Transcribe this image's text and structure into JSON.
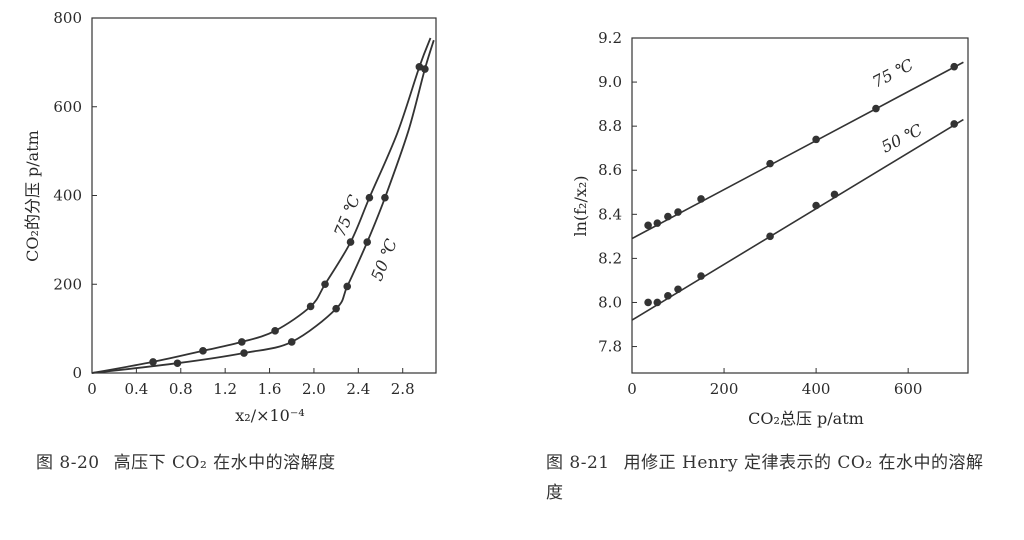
{
  "chart_data": [
    {
      "type": "scatter",
      "ylabel": "CO₂的分压 p/atm",
      "xlabel": "x₂/×10⁻⁴",
      "xlim": [
        0,
        3.1
      ],
      "ylim": [
        0,
        800
      ],
      "x_ticks": [
        "0",
        "0.4",
        "0.8",
        "1.2",
        "1.6",
        "2.0",
        "2.4",
        "2.8"
      ],
      "x_tick_values": [
        0,
        0.4,
        0.8,
        1.2,
        1.6,
        2.0,
        2.4,
        2.8
      ],
      "y_ticks": [
        "0",
        "200",
        "400",
        "600",
        "800"
      ],
      "y_tick_values": [
        0,
        200,
        400,
        600,
        800
      ],
      "series": [
        {
          "name": "75 ℃",
          "points": [
            [
              0.55,
              25
            ],
            [
              1.0,
              50
            ],
            [
              1.35,
              70
            ],
            [
              1.65,
              95
            ],
            [
              1.97,
              150
            ],
            [
              2.1,
              200
            ],
            [
              2.33,
              295
            ],
            [
              2.5,
              395
            ],
            [
              2.95,
              690
            ]
          ],
          "curve": [
            [
              0,
              0
            ],
            [
              0.55,
              25
            ],
            [
              1.0,
              50
            ],
            [
              1.35,
              70
            ],
            [
              1.65,
              95
            ],
            [
              1.97,
              150
            ],
            [
              2.1,
              200
            ],
            [
              2.33,
              295
            ],
            [
              2.5,
              395
            ],
            [
              2.75,
              540
            ],
            [
              2.95,
              690
            ],
            [
              3.05,
              755
            ]
          ]
        },
        {
          "name": "50 ℃",
          "points": [
            [
              0.77,
              22
            ],
            [
              1.37,
              45
            ],
            [
              1.8,
              70
            ],
            [
              2.2,
              145
            ],
            [
              2.3,
              195
            ],
            [
              2.48,
              295
            ],
            [
              2.64,
              395
            ],
            [
              3.0,
              685
            ]
          ],
          "curve": [
            [
              0,
              0
            ],
            [
              0.77,
              22
            ],
            [
              1.37,
              45
            ],
            [
              1.8,
              70
            ],
            [
              2.2,
              145
            ],
            [
              2.3,
              195
            ],
            [
              2.48,
              295
            ],
            [
              2.64,
              395
            ],
            [
              2.85,
              545
            ],
            [
              3.0,
              685
            ],
            [
              3.08,
              750
            ]
          ]
        }
      ]
    },
    {
      "type": "scatter",
      "ylabel": "ln(f₂/x₂)",
      "xlabel": "CO₂总压 p/atm",
      "xlim": [
        0,
        730
      ],
      "ylim": [
        7.68,
        9.2
      ],
      "x_ticks": [
        "0",
        "200",
        "400",
        "600"
      ],
      "x_tick_values": [
        0,
        200,
        400,
        600
      ],
      "y_ticks": [
        "7.8",
        "8.0",
        "8.2",
        "8.4",
        "8.6",
        "8.8",
        "9.0",
        "9.2"
      ],
      "y_tick_values": [
        7.8,
        8.0,
        8.2,
        8.4,
        8.6,
        8.8,
        9.0,
        9.2
      ],
      "series": [
        {
          "name": "75 ℃",
          "points": [
            [
              35,
              8.35
            ],
            [
              55,
              8.36
            ],
            [
              78,
              8.39
            ],
            [
              100,
              8.41
            ],
            [
              150,
              8.47
            ],
            [
              300,
              8.63
            ],
            [
              400,
              8.74
            ],
            [
              530,
              8.88
            ],
            [
              700,
              9.07
            ]
          ],
          "line": [
            [
              0,
              8.29
            ],
            [
              720,
              9.09
            ]
          ]
        },
        {
          "name": "50 ℃",
          "points": [
            [
              35,
              8.0
            ],
            [
              55,
              8.0
            ],
            [
              78,
              8.03
            ],
            [
              100,
              8.06
            ],
            [
              150,
              8.12
            ],
            [
              300,
              8.3
            ],
            [
              400,
              8.44
            ],
            [
              440,
              8.49
            ],
            [
              700,
              8.81
            ]
          ],
          "line": [
            [
              0,
              7.92
            ],
            [
              720,
              8.83
            ]
          ]
        }
      ]
    }
  ],
  "captions": {
    "left_number": "图 8-20",
    "left_text": "高压下 CO₂ 在水中的溶解度",
    "right_number": "图 8-21",
    "right_text": "用修正 Henry 定律表示的 CO₂ 在水中的溶解度"
  }
}
